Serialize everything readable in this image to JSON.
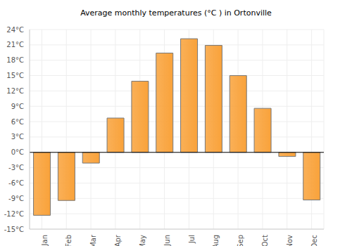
{
  "chart_data": {
    "type": "bar",
    "title": "Average monthly temperatures (°C ) in Ortonville",
    "categories": [
      "Jan",
      "Feb",
      "Mar",
      "Apr",
      "May",
      "Jun",
      "Jul",
      "Aug",
      "Sep",
      "Oct",
      "Nov",
      "Dec"
    ],
    "values": [
      -12.3,
      -9.4,
      -2.1,
      6.7,
      13.9,
      19.4,
      22.2,
      20.9,
      15.0,
      8.6,
      -0.8,
      -9.3
    ],
    "color": "#f9a23a",
    "ylim": [
      -15,
      24
    ],
    "yticks": [
      {
        "value": -15,
        "label": "-15°C"
      },
      {
        "value": -12,
        "label": "-12°C"
      },
      {
        "value": -9,
        "label": "-9°C"
      },
      {
        "value": -6,
        "label": "-6°C"
      },
      {
        "value": -3,
        "label": "-3°C"
      },
      {
        "value": 0,
        "label": "0°C"
      },
      {
        "value": 3,
        "label": "3°C"
      },
      {
        "value": 6,
        "label": "6°C"
      },
      {
        "value": 9,
        "label": "9°C"
      },
      {
        "value": 12,
        "label": "12°C"
      },
      {
        "value": 15,
        "label": "15°C"
      },
      {
        "value": 18,
        "label": "18°C"
      },
      {
        "value": 21,
        "label": "21°C"
      },
      {
        "value": 24,
        "label": "24°C"
      }
    ],
    "grid": true
  }
}
